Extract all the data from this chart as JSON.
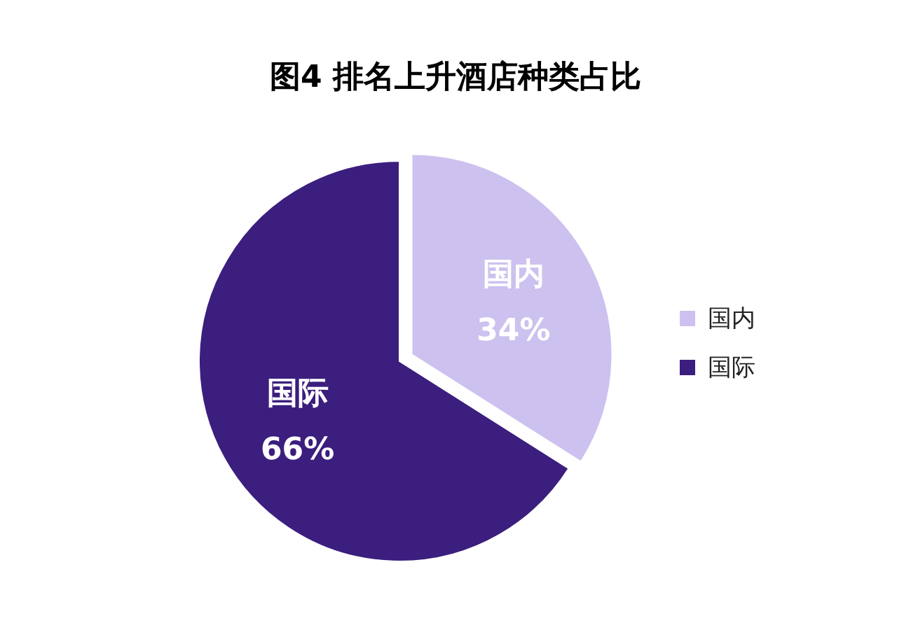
{
  "chart_data": {
    "type": "pie",
    "title": "图4 排名上升酒店种类占比",
    "categories": [
      "国内",
      "国际"
    ],
    "values": [
      34,
      66
    ],
    "value_labels": [
      "34%",
      "66%"
    ],
    "colors": [
      "#cdc1ef",
      "#3b1e7e"
    ],
    "legend": "right"
  }
}
